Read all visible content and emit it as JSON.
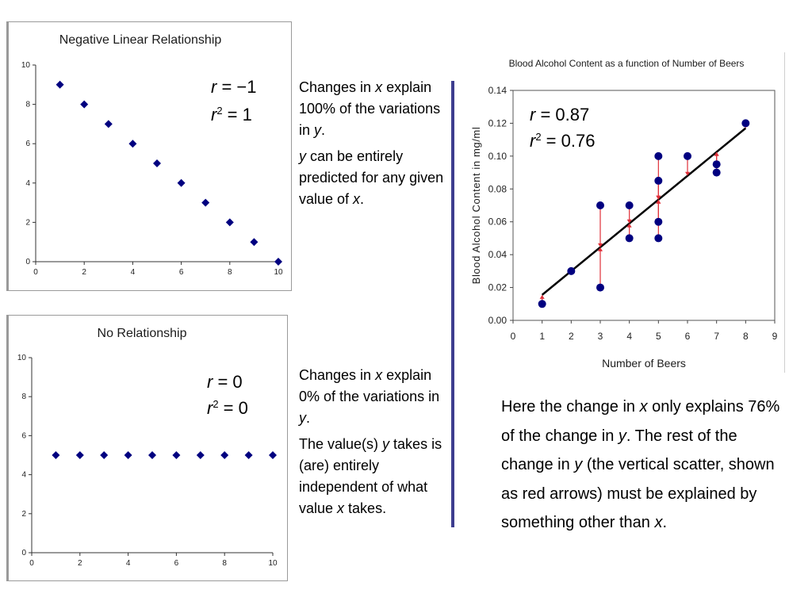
{
  "chart_data": [
    {
      "type": "scatter",
      "title": "Negative Linear Relationship",
      "x": [
        1,
        2,
        3,
        4,
        5,
        6,
        7,
        8,
        9,
        10
      ],
      "y": [
        9,
        8,
        7,
        6,
        5,
        4,
        3,
        2,
        1,
        0
      ],
      "xlim": [
        0,
        10
      ],
      "ylim": [
        0,
        10
      ],
      "xticks": [
        0,
        2,
        4,
        6,
        8,
        10
      ],
      "yticks": [
        0,
        2,
        4,
        6,
        8,
        10
      ],
      "marker": "diamond",
      "color": "#000080",
      "grid": false,
      "r_label": "r = −1",
      "r2_label": "r2 = 1"
    },
    {
      "type": "scatter",
      "title": "No Relationship",
      "x": [
        1,
        2,
        3,
        4,
        5,
        6,
        7,
        8,
        9,
        10
      ],
      "y": [
        5,
        5,
        5,
        5,
        5,
        5,
        5,
        5,
        5,
        5
      ],
      "xlim": [
        0,
        10
      ],
      "ylim": [
        0,
        10
      ],
      "xticks": [
        0,
        2,
        4,
        6,
        8,
        10
      ],
      "yticks": [
        0,
        2,
        4,
        6,
        8,
        10
      ],
      "marker": "diamond",
      "color": "#000080",
      "grid": false,
      "r_label": "r = 0",
      "r2_label": "r2 = 0"
    },
    {
      "type": "scatter",
      "title": "Blood Alcohol Content as a function of Number of Beers",
      "xlabel": "Number of Beers",
      "ylabel": "Blood Alcohol Content in mg/ml",
      "x": [
        1,
        2,
        3,
        3,
        4,
        4,
        5,
        5,
        5,
        5,
        6,
        7,
        7,
        8
      ],
      "y": [
        0.01,
        0.03,
        0.07,
        0.02,
        0.07,
        0.05,
        0.1,
        0.085,
        0.06,
        0.05,
        0.1,
        0.09,
        0.095,
        0.12
      ],
      "xlim": [
        0,
        9
      ],
      "ylim": [
        0,
        0.14
      ],
      "xticks": [
        0,
        1,
        2,
        3,
        4,
        5,
        6,
        7,
        8,
        9
      ],
      "yticks": [
        "0.00",
        "0.02",
        "0.04",
        "0.06",
        "0.08",
        "0.10",
        "0.12",
        "0.14"
      ],
      "fit_line": {
        "x": [
          1,
          8
        ],
        "y": [
          0.0155,
          0.117
        ]
      },
      "marker": "circle",
      "color": "#000080",
      "residual_color": "#e0303a",
      "grid": false,
      "r_label": "r = 0.87",
      "r2_label": "r2 = 0.76"
    }
  ],
  "labels": {
    "chart1": {
      "r_sym": "r",
      "r_val": " = −1",
      "r2_sym": "r",
      "r2_sup": "2",
      "r2_val": " = 1"
    },
    "chart2": {
      "r_sym": "r",
      "r_val": " = 0",
      "r2_sym": "r",
      "r2_sup": "2",
      "r2_val": " = 0"
    },
    "chart3": {
      "r_sym": "r",
      "r_val": " = 0.87",
      "r2_sym": "r",
      "r2_sup": "2",
      "r2_val": " = 0.76"
    }
  },
  "notes": {
    "note1": {
      "p1": [
        "Changes in ",
        "x",
        " explain 100% of the variations in ",
        "y",
        "."
      ],
      "p2": [
        "",
        "y",
        " can be entirely predicted for any given value of ",
        "x",
        "."
      ]
    },
    "note2": {
      "p1": [
        "Changes in ",
        "x",
        " explain 0% of the variations in ",
        "y",
        "."
      ],
      "p2": [
        "The value(s) ",
        "y",
        " takes is (are) entirely independent of what value ",
        "x",
        " takes."
      ]
    },
    "note3": {
      "p1": [
        "Here the change in ",
        "x",
        " only explains 76% of the change in ",
        "y",
        ". The rest of the change in ",
        "y",
        " (the vertical scatter, shown as red arrows) must be explained by something other than ",
        "x",
        "."
      ]
    }
  }
}
